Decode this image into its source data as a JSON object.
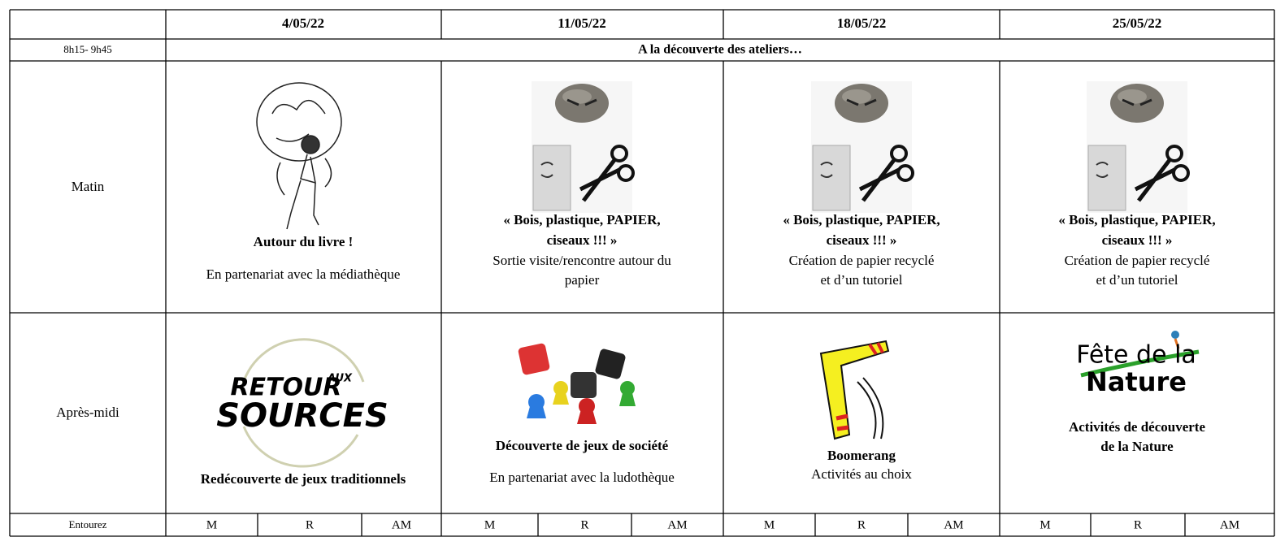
{
  "table": {
    "dates": [
      "4/05/22",
      "11/05/22",
      "18/05/22",
      "25/05/22"
    ],
    "early": {
      "time": "8h15- 9h45",
      "text": "A la découverte des ateliers…"
    },
    "morning": {
      "label": "Matin",
      "cells": [
        {
          "title": [
            "Autour du livre !"
          ],
          "text": [
            "En partenariat avec la médiathèque"
          ]
        },
        {
          "title": [
            "« Bois, plastique, PAPIER,",
            "ciseaux !!! »"
          ],
          "text": [
            "Sortie visite/rencontre autour du",
            "papier"
          ]
        },
        {
          "title": [
            "« Bois, plastique, PAPIER,",
            "ciseaux !!! »"
          ],
          "text": [
            "Création de papier recyclé",
            "et d’un tutoriel"
          ]
        },
        {
          "title": [
            "« Bois, plastique, PAPIER,",
            "ciseaux !!! »"
          ],
          "text": [
            "Création de papier recyclé",
            "et d’un tutoriel"
          ]
        }
      ]
    },
    "afternoon": {
      "label": "Après-midi",
      "cells": [
        {
          "logo": [
            "RETOUR",
            "AUX",
            "SOURCES"
          ],
          "title": [
            "Redécouverte de jeux traditionnels"
          ]
        },
        {
          "title": [
            "Découverte de jeux de société"
          ],
          "text": [
            "En partenariat avec la ludothèque"
          ]
        },
        {
          "title": [
            "Boomerang"
          ],
          "text": [
            "Activités au choix"
          ]
        },
        {
          "logo": [
            "Fête de la",
            "Nature"
          ],
          "title": [
            "Activités de découverte",
            "de la Nature"
          ]
        }
      ]
    },
    "choices": {
      "label": "Entourez",
      "options": [
        "M",
        "R",
        "AM"
      ]
    }
  }
}
